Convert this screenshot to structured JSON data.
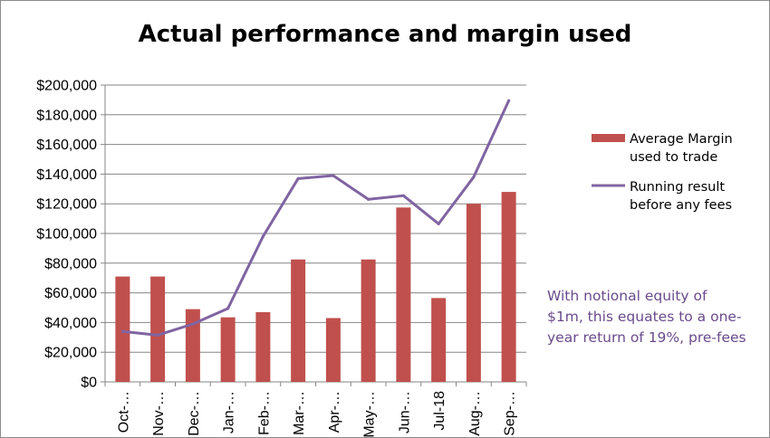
{
  "colors": {
    "bar": "#C0504D",
    "line": "#8064A2",
    "grid": "#868686",
    "note": "#6A4B8C"
  },
  "chart_data": {
    "type": "bar",
    "title": "Actual performance and margin used",
    "categories": [
      "Oct-…",
      "Nov-…",
      "Dec-…",
      "Jan-…",
      "Feb-…",
      "Mar-…",
      "Apr-…",
      "May-…",
      "Jun-…",
      "Jul-18",
      "Aug-…",
      "Sep-…"
    ],
    "ylim": [
      0,
      200000
    ],
    "ytick_labels": [
      "$0",
      "$20,000",
      "$40,000",
      "$60,000",
      "$80,000",
      "$100,000",
      "$120,000",
      "$140,000",
      "$160,000",
      "$180,000",
      "$200,000"
    ],
    "grid": true,
    "legend_position": "right",
    "series": [
      {
        "name": "Average Margin used to trade",
        "type": "bar",
        "legend_lines": [
          "Average Margin",
          "used to trade"
        ],
        "values": [
          71000,
          71000,
          49000,
          43500,
          47000,
          82500,
          43000,
          82500,
          117500,
          56500,
          120000,
          128000
        ]
      },
      {
        "name": "Running result before any fees",
        "type": "line",
        "legend_lines": [
          "Running result",
          "before any fees"
        ],
        "values": [
          34000,
          31500,
          39000,
          49500,
          98000,
          137000,
          139000,
          123000,
          125500,
          106500,
          138000,
          189500
        ]
      }
    ],
    "annotation_lines": [
      "With notional equity of",
      "$1m, this equates to a one-",
      "year return of 19%, pre-fees"
    ]
  }
}
